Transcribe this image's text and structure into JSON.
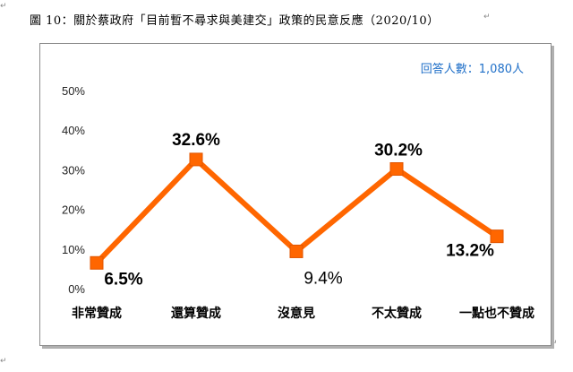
{
  "caption": "圖 10：關於蔡政府「目前暫不尋求與美建交」政策的民意反應（2020/10）",
  "chart_data": {
    "type": "line",
    "categories": [
      "非常贊成",
      "還算贊成",
      "沒意見",
      "不太贊成",
      "一點也不贊成"
    ],
    "series": [
      {
        "values": [
          6.5,
          32.6,
          9.4,
          30.2,
          13.2
        ],
        "color": "#ff6600"
      }
    ],
    "data_labels": [
      "6.5%",
      "32.6%",
      "9.4%",
      "30.2%",
      "13.2%"
    ],
    "y_ticks": [
      "0%",
      "10%",
      "20%",
      "30%",
      "40%",
      "50%"
    ],
    "ylim": [
      0,
      50
    ],
    "grid": false,
    "annotation": "回答人數：1,080人",
    "annotation_color": "#1f6fc8"
  }
}
